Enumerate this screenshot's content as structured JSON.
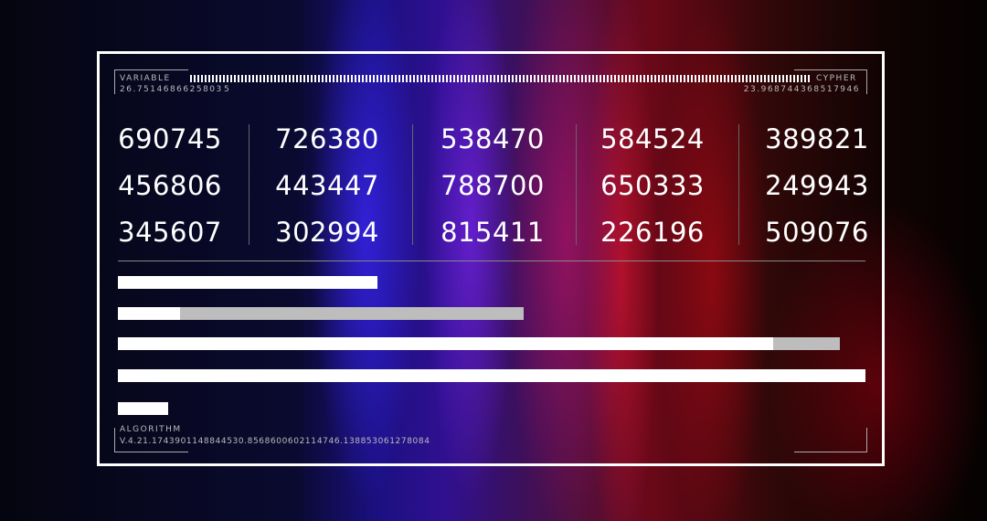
{
  "header": {
    "left_label": "VARIABLE",
    "left_value": "26.7514686625803 5",
    "right_label": "CYPHER",
    "right_value": "23.968744368517946"
  },
  "footer": {
    "label": "ALGORITHM",
    "value": "V.4.21.1743901148844530.856860060211 4746.138853061278084"
  },
  "grid": [
    [
      "690745",
      "726380",
      "538470",
      "584524",
      "389821"
    ],
    [
      "456806",
      "443447",
      "788700",
      "650333",
      "249943"
    ],
    [
      "345607",
      "302994",
      "815411",
      "226196",
      "509076"
    ]
  ],
  "bars": [
    {
      "primary": 0.347,
      "secondary": 0
    },
    {
      "primary": 0.083,
      "secondary": 0.543
    },
    {
      "primary": 0.877,
      "secondary": 0.966
    },
    {
      "primary": 1.0,
      "secondary": 0
    },
    {
      "primary": 0.067,
      "secondary": 0
    }
  ],
  "colors": {
    "bar_primary": "#ffffff",
    "bar_secondary": "#bdbdbd",
    "frame": "#ffffff"
  }
}
